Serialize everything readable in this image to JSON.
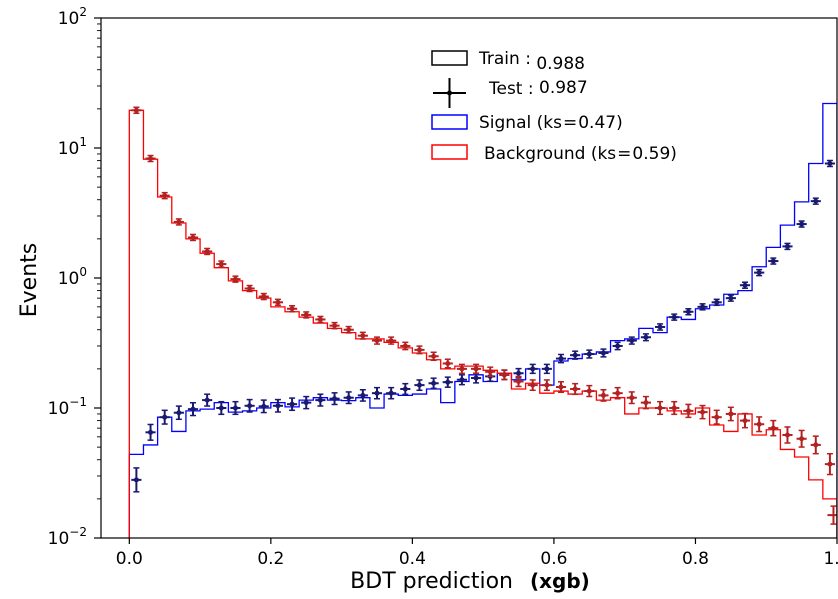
{
  "chart_data": {
    "type": "histogram",
    "xlabel": "BDT prediction",
    "xlabel_bold_suffix": "(xgb)",
    "ylabel": "Events",
    "xlim": [
      -0.04,
      1.0
    ],
    "ylim_log10": [
      -2,
      2
    ],
    "y_scale": "log",
    "grid": false,
    "legend_position": "upper-center",
    "x_ticks": [
      {
        "value": 0.0,
        "label": "0.0"
      },
      {
        "value": 0.2,
        "label": "0.2"
      },
      {
        "value": 0.4,
        "label": "0.4"
      },
      {
        "value": 0.6,
        "label": "0.6"
      },
      {
        "value": 0.8,
        "label": "0.8"
      },
      {
        "value": 1.0,
        "label": "1.0"
      }
    ],
    "y_ticks": [
      {
        "exp": -2,
        "base": "10",
        "power": "−2"
      },
      {
        "exp": -1,
        "base": "10",
        "power": "−1"
      },
      {
        "exp": 0,
        "base": "10",
        "power": "0"
      },
      {
        "exp": 1,
        "base": "10",
        "power": "1"
      },
      {
        "exp": 2,
        "base": "10",
        "power": "2"
      }
    ],
    "legend": {
      "train_label": "Train : ",
      "train_value": "0.988",
      "test_label": "Test : ",
      "test_value": "0.987",
      "signal_label": "Signal (ks",
      "signal_eq": "=",
      "signal_value": "0.47)",
      "background_label": "Background (ks",
      "background_eq": "=",
      "background_value": "0.59)"
    },
    "bin_edges": [
      0.0,
      0.02,
      0.04,
      0.06,
      0.08,
      0.1,
      0.12,
      0.14,
      0.16,
      0.18,
      0.2,
      0.22,
      0.24,
      0.26,
      0.28,
      0.3,
      0.32,
      0.34,
      0.36,
      0.38,
      0.4,
      0.42,
      0.44,
      0.46,
      0.48,
      0.5,
      0.52,
      0.54,
      0.56,
      0.58,
      0.6,
      0.62,
      0.64,
      0.66,
      0.68,
      0.7,
      0.72,
      0.74,
      0.76,
      0.78,
      0.8,
      0.82,
      0.84,
      0.86,
      0.88,
      0.9,
      0.92,
      0.94,
      0.96,
      0.98,
      1.0
    ],
    "series": [
      {
        "name": "Signal",
        "role": "train",
        "style": "step",
        "color": "#0000ff",
        "values": [
          0.044,
          0.052,
          0.085,
          0.066,
          0.095,
          0.098,
          0.11,
          0.093,
          0.095,
          0.1,
          0.11,
          0.102,
          0.115,
          0.12,
          0.115,
          0.114,
          0.12,
          0.1,
          0.128,
          0.125,
          0.128,
          0.14,
          0.11,
          0.16,
          0.18,
          0.16,
          0.185,
          0.165,
          0.2,
          0.15,
          0.23,
          0.24,
          0.26,
          0.27,
          0.33,
          0.34,
          0.41,
          0.38,
          0.5,
          0.48,
          0.58,
          0.62,
          0.75,
          0.8,
          1.22,
          1.72,
          2.55,
          3.85,
          7.6,
          22.0
        ]
      },
      {
        "name": "Background",
        "role": "train",
        "style": "step",
        "color": "#ff0000",
        "values": [
          19.5,
          8.2,
          4.2,
          2.65,
          2.0,
          1.55,
          1.2,
          0.95,
          0.8,
          0.7,
          0.6,
          0.55,
          0.5,
          0.45,
          0.41,
          0.38,
          0.34,
          0.34,
          0.32,
          0.29,
          0.265,
          0.235,
          0.2,
          0.21,
          0.21,
          0.195,
          0.185,
          0.14,
          0.155,
          0.13,
          0.135,
          0.128,
          0.135,
          0.115,
          0.12,
          0.09,
          0.1,
          0.1,
          0.095,
          0.09,
          0.1,
          0.074,
          0.066,
          0.09,
          0.062,
          0.068,
          0.048,
          0.042,
          0.028,
          0.02
        ]
      },
      {
        "name": "Signal",
        "role": "test",
        "style": "errorbar",
        "color": "#191970",
        "values": [
          0.028,
          0.065,
          0.085,
          0.092,
          0.098,
          0.115,
          0.1,
          0.1,
          0.104,
          0.103,
          0.104,
          0.107,
          0.11,
          0.115,
          0.118,
          0.12,
          0.125,
          0.13,
          0.13,
          0.14,
          0.15,
          0.155,
          0.158,
          0.165,
          0.17,
          0.175,
          0.18,
          0.185,
          0.2,
          0.2,
          0.24,
          0.255,
          0.26,
          0.265,
          0.3,
          0.33,
          0.35,
          0.42,
          0.5,
          0.55,
          0.6,
          0.65,
          0.7,
          0.88,
          1.1,
          1.35,
          1.75,
          2.6,
          3.9,
          7.6
        ]
      },
      {
        "name": "Background",
        "role": "test",
        "style": "errorbar",
        "color": "#b22222",
        "values": [
          19.5,
          8.3,
          4.3,
          2.7,
          2.05,
          1.6,
          1.28,
          0.98,
          0.83,
          0.72,
          0.65,
          0.58,
          0.52,
          0.48,
          0.43,
          0.4,
          0.36,
          0.33,
          0.33,
          0.3,
          0.28,
          0.25,
          0.22,
          0.2,
          0.2,
          0.19,
          0.18,
          0.16,
          0.15,
          0.15,
          0.145,
          0.14,
          0.135,
          0.125,
          0.13,
          0.12,
          0.11,
          0.1,
          0.1,
          0.095,
          0.093,
          0.085,
          0.09,
          0.08,
          0.075,
          0.07,
          0.062,
          0.058,
          0.052,
          0.037
        ]
      }
    ],
    "test_extra_point": {
      "x": 0.995,
      "y": 0.015,
      "color": "#b22222"
    }
  }
}
